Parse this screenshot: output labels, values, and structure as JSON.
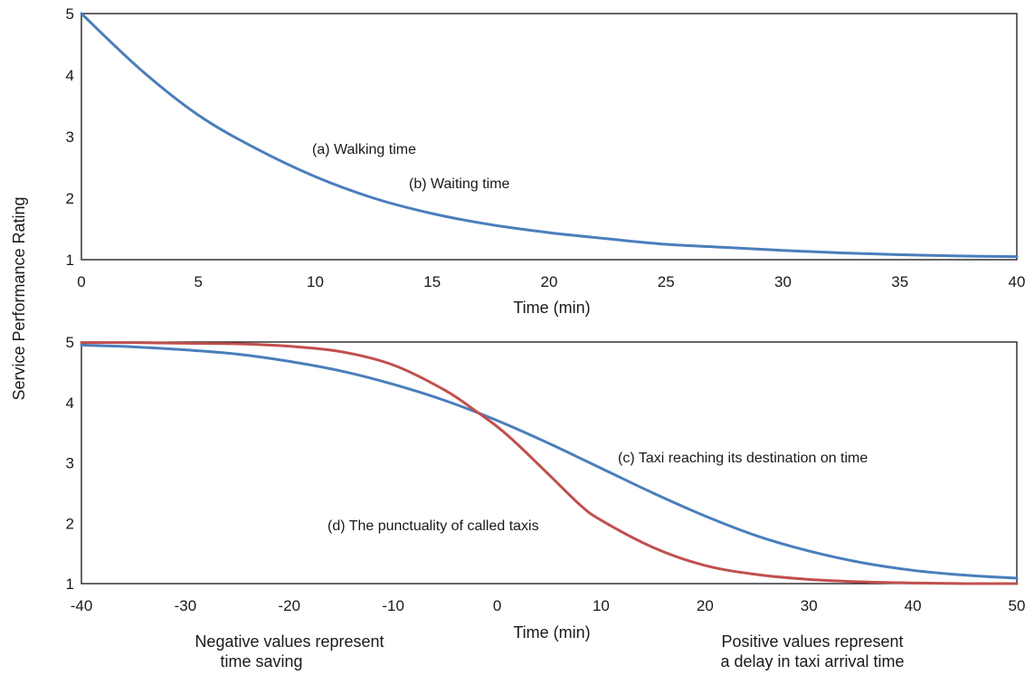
{
  "figure": {
    "ylabel": "Service Performance Rating"
  },
  "chart_data": [
    {
      "type": "line",
      "xlabel": "Time (min)",
      "ylabel": "Service Performance Rating",
      "xlim": [
        0,
        40
      ],
      "ylim": [
        1,
        5
      ],
      "xticks": [
        0,
        5,
        10,
        15,
        20,
        25,
        30,
        35,
        40
      ],
      "yticks": [
        1,
        2,
        3,
        4,
        5
      ],
      "grid": false,
      "annotations": [
        "(a) Walking time",
        "(b) Waiting time"
      ],
      "series": [
        {
          "color": "#4a7ebb",
          "x": [
            0,
            2.5,
            5,
            7.5,
            10,
            12.5,
            15,
            17.5,
            20,
            22.5,
            25,
            27.5,
            30,
            32.5,
            35,
            37.5,
            40
          ],
          "y": [
            5.0,
            4.1,
            3.35,
            2.8,
            2.35,
            2.0,
            1.75,
            1.57,
            1.44,
            1.34,
            1.25,
            1.2,
            1.15,
            1.11,
            1.08,
            1.06,
            1.05
          ]
        }
      ]
    },
    {
      "type": "line",
      "xlabel": "Time (min)",
      "ylabel": "Service Performance Rating",
      "xlim": [
        -40,
        50
      ],
      "ylim": [
        1,
        5
      ],
      "xticks": [
        -40,
        -30,
        -20,
        -10,
        0,
        10,
        20,
        30,
        40,
        50
      ],
      "yticks": [
        1,
        2,
        3,
        4,
        5
      ],
      "grid": false,
      "annotations": [
        "(c) Taxi reaching its destination on time",
        "(d) The punctuality of called taxis"
      ],
      "notes": {
        "left": [
          "Negative values represent",
          "time saving"
        ],
        "right": [
          "Positive values represent",
          "a delay in taxi arrival time"
        ]
      },
      "series": [
        {
          "color": "#4a7ebb",
          "x": [
            -40,
            -35,
            -30,
            -25,
            -20,
            -15,
            -10,
            -5,
            0,
            5,
            10,
            15,
            20,
            25,
            30,
            35,
            40,
            45,
            50
          ],
          "y": [
            4.95,
            4.92,
            4.87,
            4.8,
            4.68,
            4.52,
            4.3,
            4.03,
            3.7,
            3.32,
            2.91,
            2.5,
            2.12,
            1.79,
            1.54,
            1.35,
            1.22,
            1.14,
            1.09
          ]
        },
        {
          "color": "#c0504d",
          "x": [
            -40,
            -35,
            -30,
            -25,
            -20,
            -15,
            -10,
            -5,
            -2,
            0,
            2,
            5,
            8,
            10,
            15,
            20,
            25,
            30,
            35,
            40,
            45,
            50
          ],
          "y": [
            4.99,
            4.99,
            4.98,
            4.97,
            4.93,
            4.84,
            4.62,
            4.2,
            3.85,
            3.6,
            3.3,
            2.8,
            2.3,
            2.05,
            1.6,
            1.3,
            1.15,
            1.07,
            1.03,
            1.01,
            1.0,
            1.0
          ]
        }
      ]
    }
  ]
}
